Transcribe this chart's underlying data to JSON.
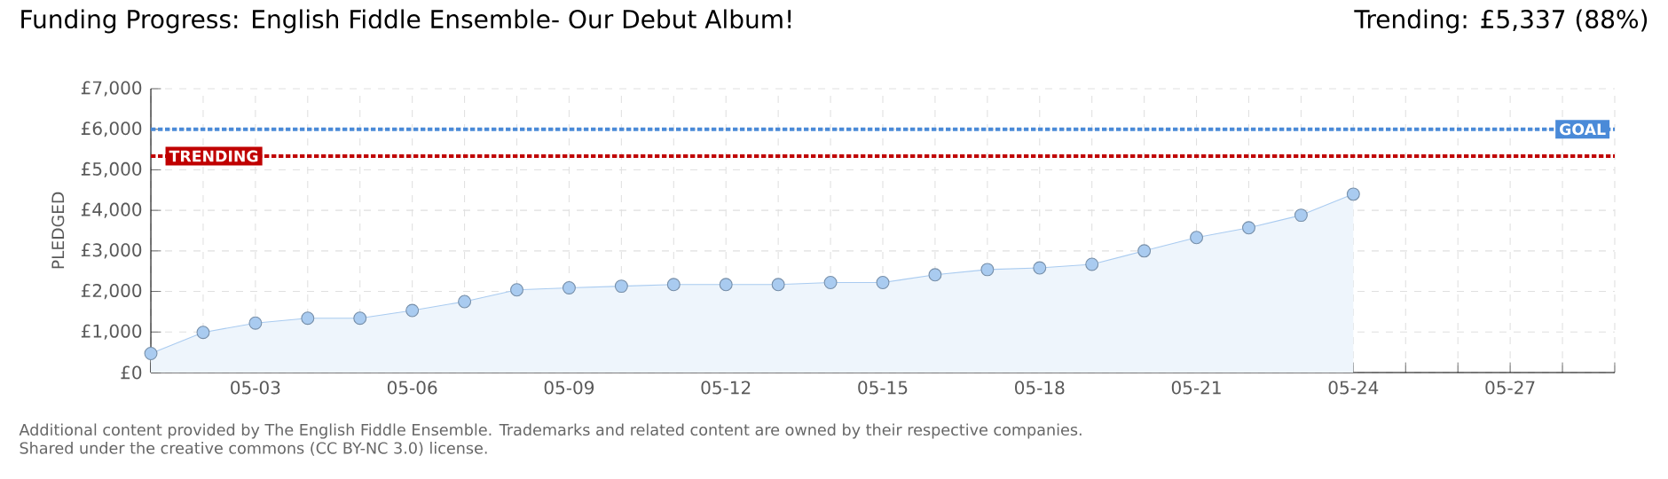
{
  "chart_data": {
    "type": "area",
    "title": "Funding Progress: English Fiddle Ensemble- Our Debut Album!",
    "subtitle": "Trending: £5,337 (88%)",
    "ylabel": "PLEDGED",
    "categories": [
      null,
      null,
      "05-03",
      null,
      null,
      "05-06",
      null,
      null,
      "05-09",
      null,
      null,
      "05-12",
      null,
      null,
      "05-15",
      null,
      null,
      "05-18",
      null,
      null,
      "05-21",
      null,
      null,
      "05-24",
      null,
      null,
      "05-27",
      null,
      null
    ],
    "series": [
      {
        "color": "#a9cbf0",
        "values": [
          470,
          990,
          1220,
          1340,
          1340,
          1530,
          1750,
          2040,
          2090,
          2130,
          2170,
          2170,
          2170,
          2220,
          2220,
          2410,
          2540,
          2580,
          2670,
          3000,
          3330,
          3570,
          3880,
          4400,
          null,
          null,
          null,
          null,
          null
        ]
      }
    ],
    "ylim": [
      0,
      7000
    ],
    "yticks": [
      {
        "value": 0,
        "label": "£0"
      },
      {
        "value": 1000,
        "label": "£1,000"
      },
      {
        "value": 2000,
        "label": "£2,000"
      },
      {
        "value": 3000,
        "label": "£3,000"
      },
      {
        "value": 4000,
        "label": "£4,000"
      },
      {
        "value": 5000,
        "label": "£5,000"
      },
      {
        "value": 6000,
        "label": "£6,000"
      },
      {
        "value": 7000,
        "label": "£7,000"
      }
    ],
    "ref_lines": [
      {
        "axis": "y",
        "value": 6000,
        "label": "GOAL",
        "color": "#4a8ad8",
        "line_style": "dotted"
      },
      {
        "axis": "y",
        "value": 5337,
        "label": "TRENDING",
        "color": "#c00000",
        "line_style": "dotted"
      }
    ],
    "grid": true,
    "marker": "circle",
    "annotations": [
      "Additional content provided by The English Fiddle Ensemble. Trademarks and related content are owned by their respective companies.",
      "Shared under the creative commons (CC BY-NC 3.0) license."
    ]
  }
}
